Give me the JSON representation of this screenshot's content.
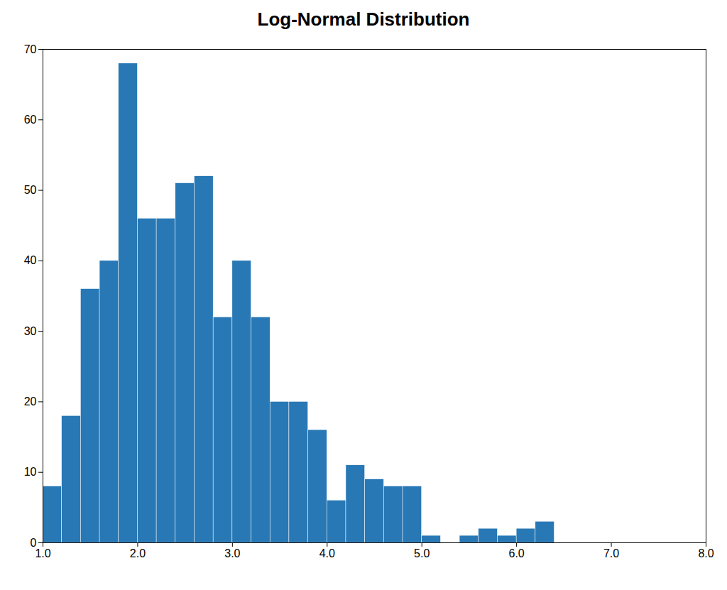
{
  "chart_data": {
    "type": "histogram",
    "title": "Log-Normal Distribution",
    "bins": [
      1.0,
      1.2,
      1.4,
      1.6,
      1.8,
      2.0,
      2.2,
      2.4,
      2.6,
      2.8,
      3.0,
      3.2,
      3.4,
      3.6,
      3.8,
      4.0,
      4.2,
      4.4,
      4.6,
      4.8,
      5.0,
      5.2,
      5.4,
      5.6,
      5.8,
      6.0,
      6.2,
      6.4,
      6.6,
      6.8,
      7.0,
      7.2,
      7.4,
      7.6,
      7.8,
      8.0
    ],
    "values": [
      8,
      18,
      36,
      40,
      68,
      46,
      46,
      51,
      52,
      32,
      40,
      32,
      20,
      20,
      16,
      6,
      11,
      9,
      8,
      8,
      1,
      0,
      1,
      2,
      1,
      2,
      3,
      0,
      0,
      0,
      0,
      0,
      0,
      0,
      0
    ],
    "color": "#2878b5",
    "xlim": [
      1,
      8
    ],
    "ylim": [
      0,
      70
    ],
    "xticks": [
      1,
      2,
      3,
      4,
      5,
      6,
      7,
      8
    ],
    "yticks": [
      0,
      10,
      20,
      30,
      40,
      50,
      60,
      70
    ],
    "grid": false
  }
}
